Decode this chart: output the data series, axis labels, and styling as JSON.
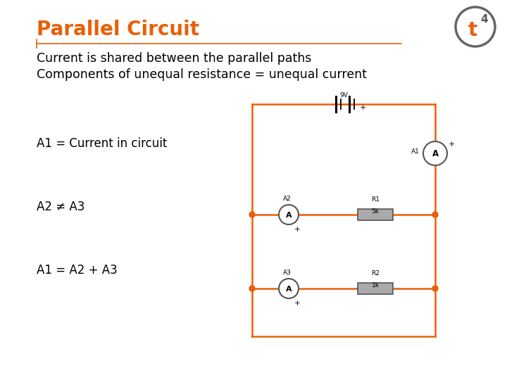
{
  "title": "Parallel Circuit",
  "title_color": "#E8600A",
  "title_fontsize": 20,
  "line1": "Current is shared between the parallel paths",
  "line2": "Components of unequal resistance = unequal current",
  "body_fontsize": 12.5,
  "label1": "A1 = Current in circuit",
  "label2": "A2 ≠ A3",
  "label3": "A1 = A2 + A3",
  "label_fontsize": 12,
  "bg_color": "#ffffff",
  "orange": "#E8600A",
  "dark_gray": "#555555",
  "res_fill": "#aaaaaa",
  "wire_color": "#E8600A",
  "logo_circle_color": "#666666",
  "logo_t_color": "#E8600A"
}
